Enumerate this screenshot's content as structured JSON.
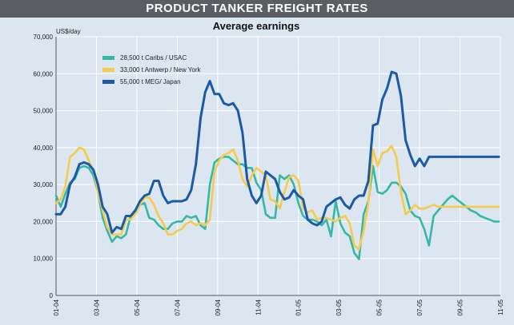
{
  "banner": {
    "title": "PRODUCT TANKER FREIGHT RATES"
  },
  "chart_data": {
    "type": "line",
    "title": "Average earnings",
    "ylabel": "US$/day",
    "xlabel": "",
    "ylim": [
      0,
      70000
    ],
    "yticks": [
      "0",
      "10,000",
      "20,000",
      "30,000",
      "40,000",
      "50,000",
      "60,000",
      "70,000"
    ],
    "ytick_values": [
      0,
      10000,
      20000,
      30000,
      40000,
      50000,
      60000,
      70000
    ],
    "xticks": [
      "01-04",
      "03-04",
      "05-04",
      "07-04",
      "09-04",
      "11-04",
      "01-05",
      "03-05",
      "05-05",
      "07-05",
      "09-05",
      "11-05"
    ],
    "xtick_weeks": [
      0,
      8.67,
      17.33,
      26,
      34.67,
      43.33,
      52,
      60.67,
      69.33,
      78,
      86.67,
      95.33
    ],
    "grid": true,
    "legend_position": "top-left",
    "colors": {
      "background": "#dce6f0",
      "banner": "#5a5e62",
      "grid": "#ffffff"
    },
    "x_weeks": [
      0,
      1,
      2,
      3,
      4,
      5,
      6,
      7,
      8,
      9,
      10,
      11,
      12,
      13,
      14,
      15,
      16,
      17,
      18,
      19,
      20,
      21,
      22,
      23,
      24,
      25,
      26,
      27,
      28,
      29,
      30,
      31,
      32,
      33,
      34,
      35,
      36,
      37,
      38,
      39,
      40,
      41,
      42,
      43,
      44,
      45,
      46,
      47,
      48,
      49,
      50,
      51,
      52,
      53,
      54,
      55,
      56,
      57,
      58,
      59,
      60,
      61,
      62,
      63,
      64,
      65,
      66,
      67,
      68,
      69,
      70,
      71,
      72,
      73,
      74,
      75,
      76,
      77,
      78,
      79,
      80,
      81,
      82,
      83,
      84,
      85,
      86,
      87,
      88,
      89,
      90,
      91,
      92,
      93,
      94,
      95
    ],
    "series": [
      {
        "name": "28,500 t Caribs / USAC",
        "color": "#36b8a6",
        "values": [
          27000,
          24000,
          27500,
          30500,
          31500,
          34500,
          35000,
          34500,
          32500,
          28000,
          21000,
          17500,
          14500,
          16000,
          15500,
          16500,
          21500,
          22000,
          24500,
          25000,
          21000,
          20500,
          19000,
          18000,
          18000,
          19500,
          20000,
          20000,
          21500,
          21000,
          21500,
          19000,
          18000,
          30000,
          36000,
          37000,
          37500,
          37500,
          36500,
          35500,
          35500,
          34500,
          34500,
          30500,
          28500,
          22000,
          21000,
          21000,
          32500,
          31500,
          32500,
          30000,
          25000,
          21500,
          20500,
          20500,
          20000,
          19000,
          20500,
          16000,
          25500,
          19500,
          17000,
          16000,
          11500,
          9800,
          22000,
          25500,
          35000,
          28000,
          27500,
          28500,
          30500,
          30500,
          29500,
          27500,
          23000,
          21500,
          21000,
          18000,
          13500,
          21500,
          23000,
          24500,
          26000,
          27000,
          26000,
          25000,
          24000,
          23000,
          22500,
          21500,
          21000,
          20500,
          20000,
          20000
        ]
      },
      {
        "name": "33,000 t Antwerp / New York",
        "color": "#f5cb4b",
        "values": [
          25000,
          26000,
          29500,
          37500,
          38500,
          40000,
          39500,
          36500,
          34000,
          28000,
          23000,
          18500,
          16500,
          16500,
          16500,
          20500,
          20500,
          22000,
          24500,
          26500,
          26500,
          24500,
          21500,
          19500,
          16500,
          16500,
          17500,
          18000,
          19500,
          20000,
          19000,
          19500,
          19000,
          20500,
          33500,
          36500,
          38000,
          38500,
          39500,
          36500,
          31500,
          29500,
          32500,
          34500,
          33500,
          32500,
          26000,
          25500,
          23500,
          28000,
          32000,
          32500,
          31000,
          23500,
          22500,
          23000,
          20500,
          21000,
          21000,
          20500,
          20000,
          21000,
          21500,
          19500,
          13500,
          12500,
          17500,
          25000,
          39500,
          35000,
          38500,
          39000,
          40500,
          37500,
          28000,
          22000,
          23000,
          24500,
          23500,
          23500,
          24000,
          24500,
          24000,
          24000,
          24000,
          24000,
          24000,
          24000,
          24000,
          24000,
          24000,
          24000,
          24000,
          24000,
          24000,
          24000
        ]
      },
      {
        "name": "55,000 t MEG/ Japan",
        "color": "#1a5aa6",
        "values": [
          22000,
          22000,
          24000,
          30000,
          32000,
          35500,
          36000,
          35500,
          34000,
          30000,
          24000,
          22000,
          17000,
          18500,
          18000,
          21500,
          21500,
          23000,
          25500,
          27000,
          27500,
          31000,
          31000,
          27000,
          25000,
          25500,
          25500,
          25500,
          26000,
          28500,
          35500,
          48000,
          55000,
          58000,
          54500,
          54500,
          52000,
          51500,
          52000,
          50000,
          44000,
          31500,
          27000,
          25000,
          27000,
          33500,
          32500,
          31500,
          28000,
          26000,
          26500,
          28500,
          27000,
          26000,
          20500,
          19500,
          19000,
          20000,
          24000,
          25000,
          26000,
          26500,
          24500,
          23500,
          26000,
          27000,
          27000,
          31000,
          46000,
          46500,
          53000,
          56000,
          60500,
          60000,
          54000,
          42000,
          38000,
          35000,
          37000,
          35000,
          37500,
          37500,
          37500,
          37500,
          37500,
          37500,
          37500,
          37500,
          37500,
          37500,
          37500,
          37500,
          37500,
          37500,
          37500,
          37500
        ]
      }
    ]
  }
}
